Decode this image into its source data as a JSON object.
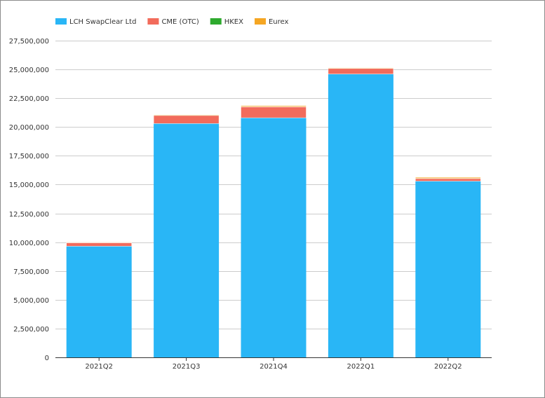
{
  "chart_data": {
    "type": "bar",
    "stacked": true,
    "title": "",
    "xlabel": "",
    "ylabel": "",
    "categories": [
      "2021Q2",
      "2021Q3",
      "2021Q4",
      "2022Q1",
      "2022Q2"
    ],
    "ylim": [
      0,
      27500000
    ],
    "yticks": [
      0,
      2500000,
      5000000,
      7500000,
      10000000,
      12500000,
      15000000,
      17500000,
      20000000,
      22500000,
      25000000,
      27500000
    ],
    "ytick_labels": [
      "0",
      "2,500,000",
      "5,000,000",
      "7,500,000",
      "10,000,000",
      "12,500,000",
      "15,000,000",
      "17,500,000",
      "20,000,000",
      "22,500,000",
      "25,000,000",
      "27,500,000"
    ],
    "grid": true,
    "legend_position": "top-left",
    "series": [
      {
        "name": "LCH SwapClear Ltd",
        "color": "#29b6f6",
        "values": [
          9650000,
          20300000,
          20800000,
          24600000,
          15300000
        ]
      },
      {
        "name": "CME (OTC)",
        "color": "#f26b5b",
        "values": [
          300000,
          700000,
          950000,
          480000,
          220000
        ]
      },
      {
        "name": "HKEX",
        "color": "#2eaa2e",
        "values": [
          15000,
          20000,
          20000,
          20000,
          20000
        ]
      },
      {
        "name": "Eurex",
        "color": "#f5a623",
        "values": [
          40000,
          50000,
          80000,
          50000,
          90000
        ]
      }
    ]
  }
}
